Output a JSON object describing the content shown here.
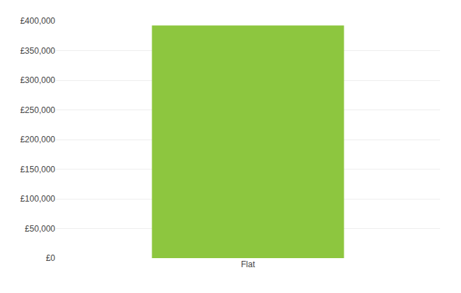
{
  "chart_data": {
    "type": "bar",
    "categories": [
      "Flat"
    ],
    "values": [
      392500
    ],
    "color": "#8DC63F",
    "ylim": [
      0,
      400000
    ],
    "yticks": [
      {
        "value": 0,
        "label": "£0"
      },
      {
        "value": 50000,
        "label": "£50,000"
      },
      {
        "value": 100000,
        "label": "£100,000"
      },
      {
        "value": 150000,
        "label": "£150,000"
      },
      {
        "value": 200000,
        "label": "£200,000"
      },
      {
        "value": 250000,
        "label": "£250,000"
      },
      {
        "value": 300000,
        "label": "£300,000"
      },
      {
        "value": 350000,
        "label": "£350,000"
      },
      {
        "value": 400000,
        "label": "£400,000"
      }
    ],
    "grid": true
  }
}
